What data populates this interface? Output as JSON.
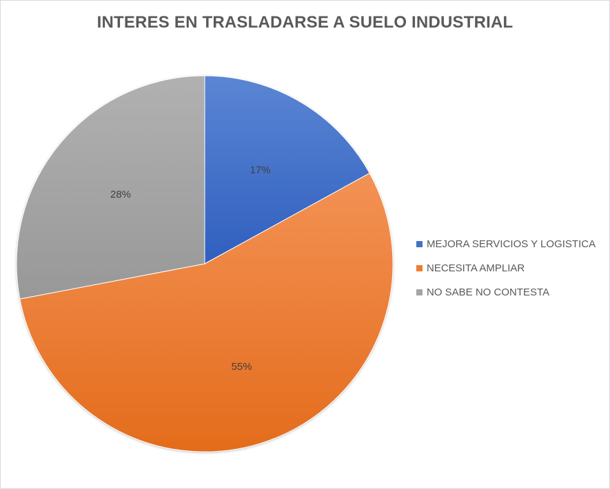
{
  "chart_data": {
    "type": "pie",
    "title": "INTERES EN TRASLADARSE A SUELO INDUSTRIAL",
    "categories": [
      "MEJORA SERVICIOS Y LOGISTICA",
      "NECESITA AMPLIAR",
      "NO SABE NO CONTESTA"
    ],
    "values": [
      17,
      55,
      28
    ],
    "labels": [
      "17%",
      "55%",
      "28%"
    ],
    "colors": [
      "#4472c4",
      "#ed7d31",
      "#a5a5a5"
    ],
    "legend_position": "right"
  }
}
